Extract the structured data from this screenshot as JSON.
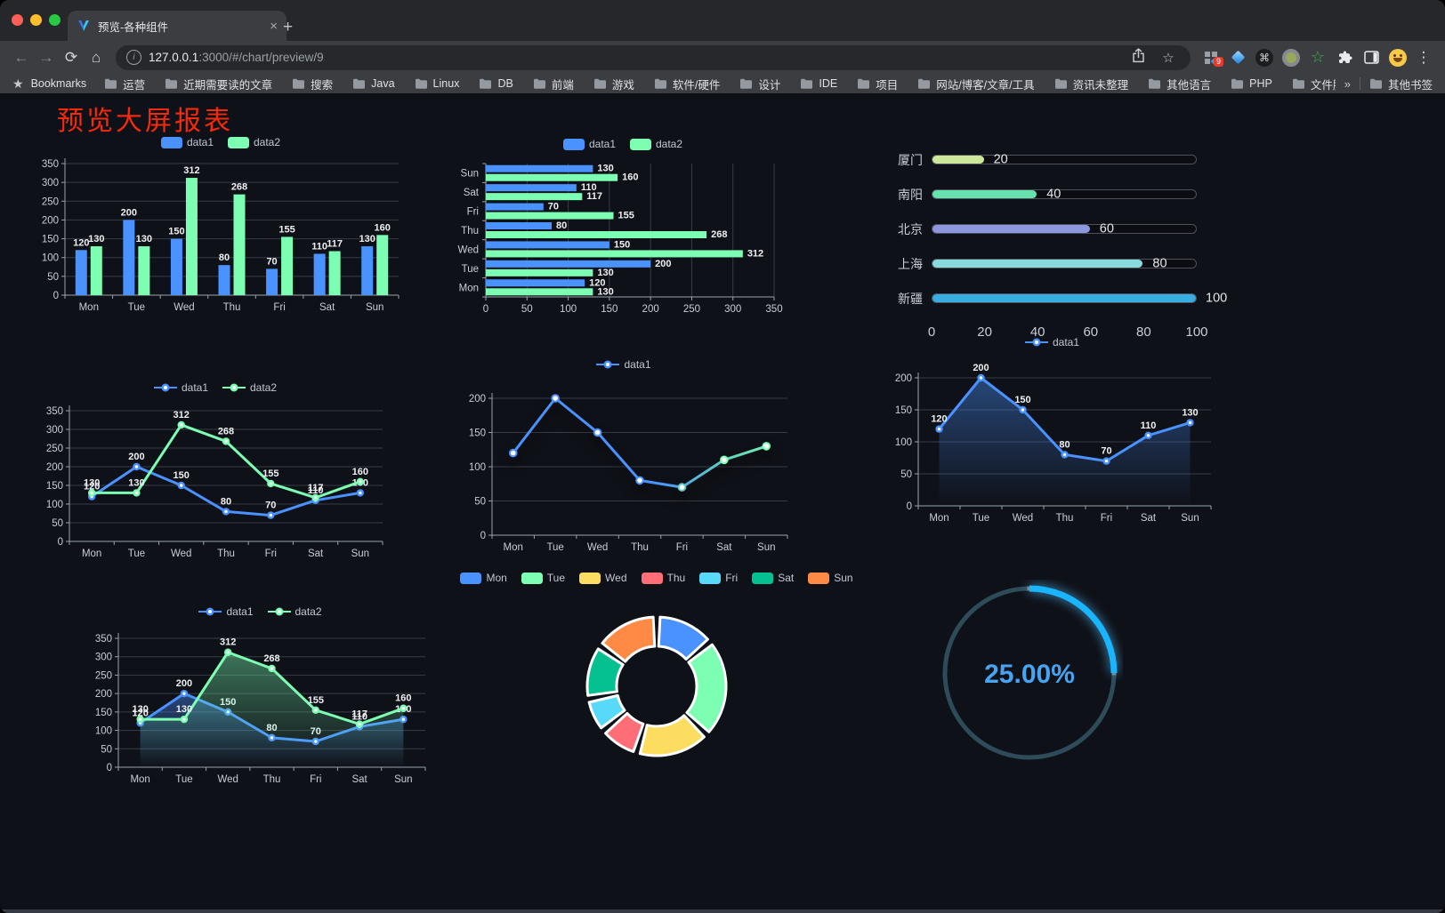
{
  "browser": {
    "traffic_lights": {
      "close": "#ff5f57",
      "minimize": "#febc2e",
      "zoom": "#28c840"
    },
    "tab": {
      "title": "预览-各种组件"
    },
    "glyphs": {
      "back": "←",
      "forward": "→",
      "reload": "⟳",
      "home": "⌂",
      "bookmark_star": "☆",
      "command": "⌘",
      "green_star": "☆",
      "kebab": "⋮",
      "close": "×",
      "plus": "+",
      "overflow": "»",
      "info": "i",
      "bookmarks_star": "★"
    },
    "address": {
      "host": "127.0.0.1",
      "rest": ":3000/#/chart/preview/9"
    },
    "toolbar": {
      "extension_badge": "9"
    },
    "bookmarks_bar": {
      "bookmarks_label": "Bookmarks",
      "folders": [
        "运营",
        "近期需要读的文章",
        "搜索",
        "Java",
        "Linux",
        "DB",
        "前端",
        "游戏",
        "软件/硬件",
        "设计",
        "IDE",
        "项目",
        "网站/博客/文章/工具",
        "资讯未整理",
        "其他语言",
        "PHP",
        "文件服务器"
      ],
      "other_bookmarks": "其他书签"
    }
  },
  "page": {
    "title": "预览大屏报表",
    "title_color": "#f5290b",
    "background": "#0f1118"
  },
  "palette": {
    "data1": "#4992ff",
    "data2": "#7cffb2"
  },
  "chart_data": [
    {
      "id": "bar-vertical",
      "type": "bar",
      "categories": [
        "Mon",
        "Tue",
        "Wed",
        "Thu",
        "Fri",
        "Sat",
        "Sun"
      ],
      "series": [
        {
          "name": "data1",
          "color": "#4992ff",
          "values": [
            120,
            200,
            150,
            80,
            70,
            110,
            130
          ]
        },
        {
          "name": "data2",
          "color": "#7cffb2",
          "values": [
            130,
            130,
            312,
            268,
            155,
            117,
            160
          ]
        }
      ],
      "ylim": [
        0,
        350
      ],
      "ytick_step": 50,
      "grid": true,
      "legend_position": "top",
      "data_labels": true
    },
    {
      "id": "bar-horizontal",
      "type": "bar-horizontal",
      "categories": [
        "Mon",
        "Tue",
        "Wed",
        "Thu",
        "Fri",
        "Sat",
        "Sun"
      ],
      "series": [
        {
          "name": "data1",
          "color": "#4992ff",
          "values": [
            120,
            200,
            150,
            80,
            70,
            110,
            130
          ]
        },
        {
          "name": "data2",
          "color": "#7cffb2",
          "values": [
            130,
            130,
            312,
            268,
            155,
            117,
            160
          ]
        }
      ],
      "xlim": [
        0,
        350
      ],
      "xtick_step": 50,
      "grid": true,
      "legend_position": "top",
      "data_labels": true
    },
    {
      "id": "progress-list",
      "type": "progress",
      "items": [
        {
          "label": "厦门",
          "value": 20,
          "color": "#cde89a"
        },
        {
          "label": "南阳",
          "value": 40,
          "color": "#66e2af"
        },
        {
          "label": "北京",
          "value": 60,
          "color": "#8d97e0"
        },
        {
          "label": "上海",
          "value": 80,
          "color": "#87dade"
        },
        {
          "label": "新疆",
          "value": 100,
          "color": "#38ade2"
        }
      ],
      "xlim": [
        0,
        100
      ],
      "axis_ticks": [
        0,
        20,
        40,
        60,
        80,
        100
      ]
    },
    {
      "id": "line-basic",
      "type": "line",
      "categories": [
        "Mon",
        "Tue",
        "Wed",
        "Thu",
        "Fri",
        "Sat",
        "Sun"
      ],
      "series": [
        {
          "name": "data1",
          "color": "#4992ff",
          "values": [
            120,
            200,
            150,
            80,
            70,
            110,
            130
          ]
        },
        {
          "name": "data2",
          "color": "#7cffb2",
          "values": [
            130,
            130,
            312,
            268,
            155,
            117,
            160
          ]
        }
      ],
      "ylim": [
        0,
        350
      ],
      "ytick_step": 50,
      "grid": true,
      "legend_position": "top",
      "data_labels": true
    },
    {
      "id": "line-gradient",
      "type": "line",
      "categories": [
        "Mon",
        "Tue",
        "Wed",
        "Thu",
        "Fri",
        "Sat",
        "Sun"
      ],
      "series": [
        {
          "name": "data1",
          "color": "#4992ff",
          "color_gradient": [
            "#4992ff",
            "#7cffb2"
          ],
          "values": [
            120,
            200,
            150,
            80,
            70,
            110,
            130
          ]
        }
      ],
      "ylim": [
        0,
        200
      ],
      "ytick_step": 50,
      "grid": true,
      "legend_position": "top",
      "data_labels": false
    },
    {
      "id": "line-area",
      "type": "area",
      "categories": [
        "Mon",
        "Tue",
        "Wed",
        "Thu",
        "Fri",
        "Sat",
        "Sun"
      ],
      "series": [
        {
          "name": "data1",
          "color": "#4992ff",
          "area": true,
          "values": [
            120,
            200,
            150,
            80,
            70,
            110,
            130
          ]
        }
      ],
      "ylim": [
        0,
        200
      ],
      "ytick_step": 50,
      "grid": true,
      "legend_position": "top",
      "data_labels": true
    },
    {
      "id": "line-area-double",
      "type": "area",
      "categories": [
        "Mon",
        "Tue",
        "Wed",
        "Thu",
        "Fri",
        "Sat",
        "Sun"
      ],
      "series": [
        {
          "name": "data1",
          "color": "#4992ff",
          "area": true,
          "values": [
            120,
            200,
            150,
            80,
            70,
            110,
            130
          ]
        },
        {
          "name": "data2",
          "color": "#7cffb2",
          "area": true,
          "values": [
            130,
            130,
            312,
            268,
            155,
            117,
            160
          ]
        }
      ],
      "ylim": [
        0,
        350
      ],
      "ytick_step": 50,
      "grid": true,
      "legend_position": "top",
      "data_labels": true
    },
    {
      "id": "pie-donut",
      "type": "pie",
      "donut": true,
      "categories": [
        "Mon",
        "Tue",
        "Wed",
        "Thu",
        "Fri",
        "Sat",
        "Sun"
      ],
      "values": [
        120,
        200,
        150,
        80,
        70,
        110,
        130
      ],
      "colors": [
        "#4992ff",
        "#7cffb2",
        "#fddd60",
        "#ff6e76",
        "#58d9f9",
        "#05c091",
        "#ff8a45"
      ],
      "legend_position": "top"
    },
    {
      "id": "gauge-progress",
      "type": "gauge",
      "value": 25,
      "label": "25.00%",
      "progress_color": "#19b5ff",
      "track_color": "#2d4b58",
      "label_color": "#47a4f3"
    }
  ]
}
